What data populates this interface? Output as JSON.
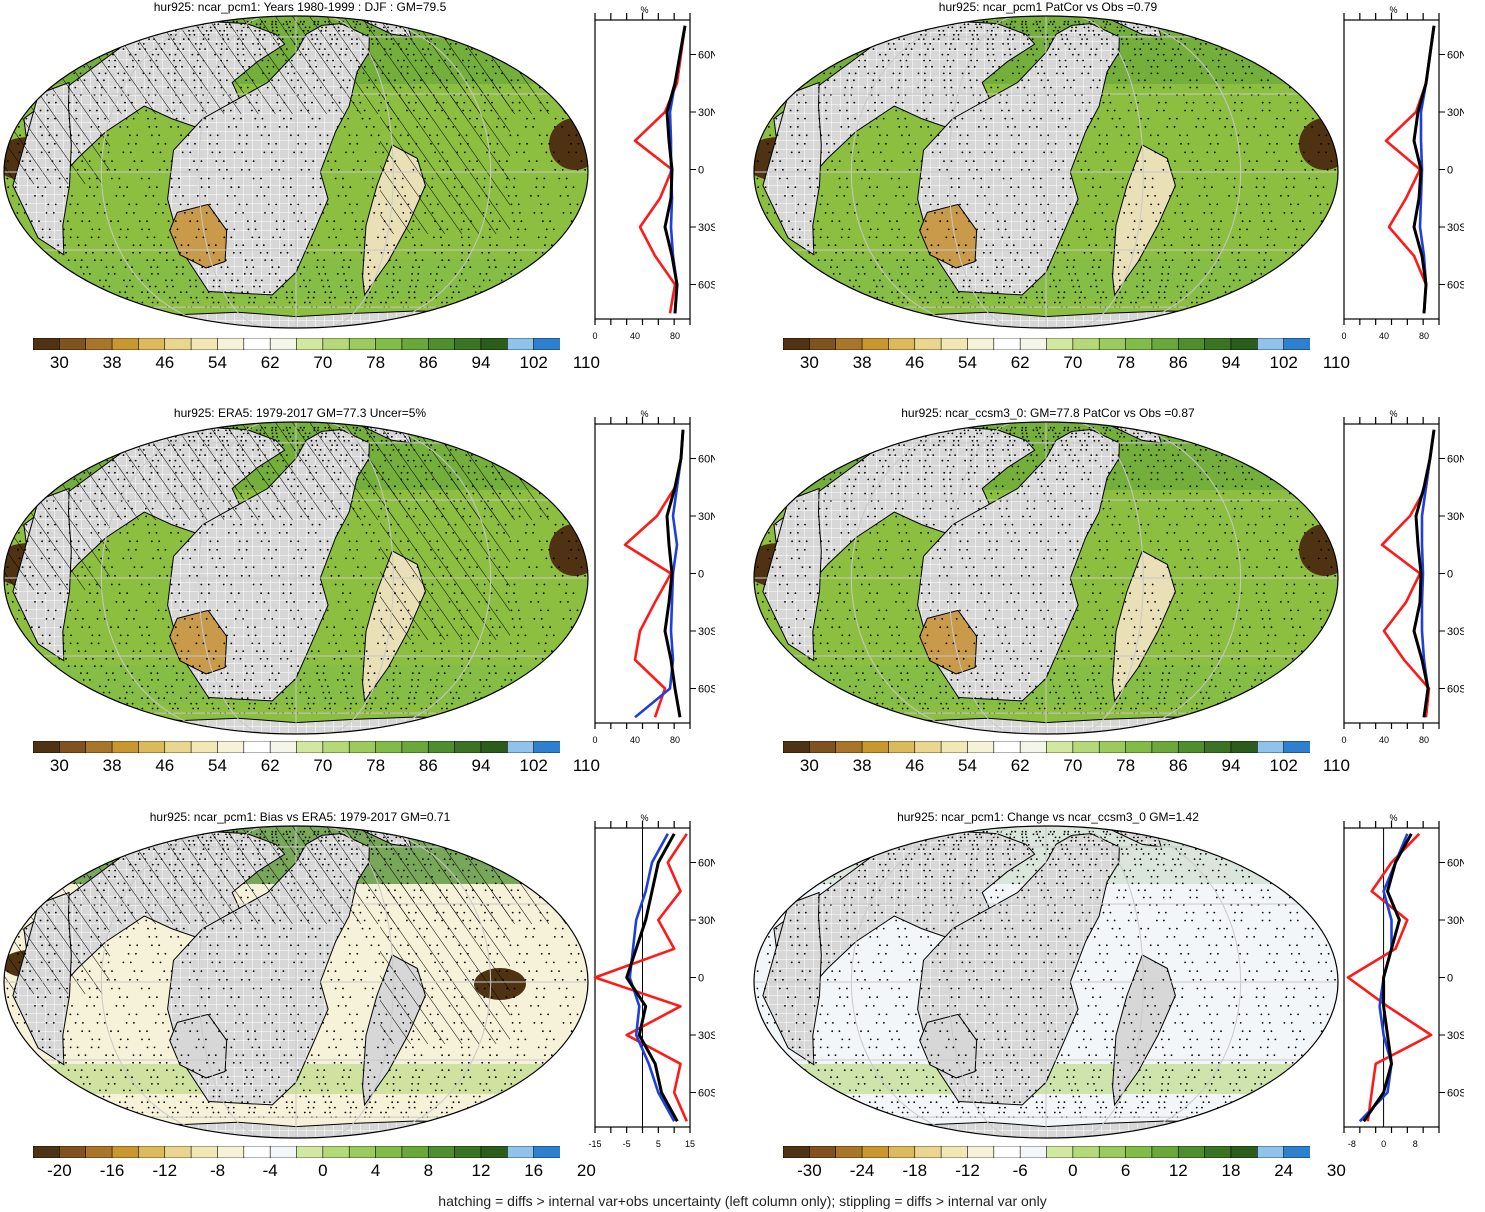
{
  "footer": "hatching = diffs > internal var+obs uncertainty (left column only); stippling = diffs > internal var only",
  "colors": {
    "ocean": "#8cbf3f",
    "land_missing": "#d7d7d7",
    "lat_line": "#c8c8c8",
    "profile_red": "#ff1a1a",
    "profile_blue": "#1f3fdc",
    "profile_black": "#000000",
    "abs_scale": [
      "#4f3212",
      "#80521e",
      "#a8752a",
      "#c9962f",
      "#dcba5c",
      "#ead68f",
      "#f2e8b5",
      "#f6f1d9",
      "#ffffff",
      "#f3f6e8",
      "#d2e8a0",
      "#b5d878",
      "#9bcb5c",
      "#82bc48",
      "#6aa83b",
      "#4f8e2d",
      "#3a7322",
      "#2a5c1a",
      "#8fc3ec",
      "#2d7fd0"
    ],
    "bias_scale": [
      "#4f3212",
      "#80521e",
      "#a8752a",
      "#c9962f",
      "#dcba5c",
      "#ead68f",
      "#f2e8b5",
      "#f6f1d9",
      "#ffffff",
      "#f3f6f8",
      "#d2e8a0",
      "#b5d878",
      "#9bcb5c",
      "#82bc48",
      "#6aa83b",
      "#4f8e2d",
      "#3a7322",
      "#2a5c1a",
      "#8fc3ec",
      "#2d7fd0"
    ]
  },
  "panels": [
    {
      "id": "p1",
      "title": "hur925: ncar_pcm1: Years 1980-1999 : DJF : GM=79.5",
      "kind": "abs",
      "hatch": true,
      "cbar_labels": [
        "30",
        "38",
        "46",
        "54",
        "62",
        "70",
        "78",
        "86",
        "94",
        "102",
        "110"
      ],
      "profile": {
        "xticks": [
          "0",
          "40",
          "80"
        ],
        "xlim": [
          0,
          95
        ],
        "unit": "%",
        "zero_line": false
      }
    },
    {
      "id": "p2",
      "title": "hur925: ncar_pcm1 PatCor vs Obs =0.79",
      "kind": "abs",
      "hatch": false,
      "cbar_labels": [
        "30",
        "38",
        "46",
        "54",
        "62",
        "70",
        "78",
        "86",
        "94",
        "102",
        "110"
      ],
      "profile": {
        "xticks": [
          "0",
          "40",
          "80"
        ],
        "xlim": [
          0,
          95
        ],
        "unit": "%",
        "zero_line": false
      }
    },
    {
      "id": "p3",
      "title": "hur925: ERA5: 1979-2017 GM=77.3 Uncer=5%",
      "kind": "abs",
      "hatch": true,
      "cbar_labels": [
        "30",
        "38",
        "46",
        "54",
        "62",
        "70",
        "78",
        "86",
        "94",
        "102",
        "110"
      ],
      "profile": {
        "xticks": [
          "0",
          "40",
          "80"
        ],
        "xlim": [
          0,
          95
        ],
        "unit": "%",
        "zero_line": false
      }
    },
    {
      "id": "p4",
      "title": "hur925: ncar_ccsm3_0: GM=77.8 PatCor vs Obs =0.87",
      "kind": "abs",
      "hatch": false,
      "cbar_labels": [
        "30",
        "38",
        "46",
        "54",
        "62",
        "70",
        "78",
        "86",
        "94",
        "102",
        "110"
      ],
      "profile": {
        "xticks": [
          "0",
          "40",
          "80"
        ],
        "xlim": [
          0,
          95
        ],
        "unit": "%",
        "zero_line": false
      }
    },
    {
      "id": "p5",
      "title": "hur925: ncar_pcm1: Bias vs ERA5: 1979-2017 GM=0.71",
      "kind": "bias",
      "hatch": true,
      "cbar_labels": [
        "-20",
        "-16",
        "-12",
        "-8",
        "-4",
        "0",
        "4",
        "8",
        "12",
        "16",
        "20"
      ],
      "profile": {
        "xticks": [
          "-15",
          "-5",
          "5",
          "15"
        ],
        "xlim": [
          -15,
          15
        ],
        "unit": "%",
        "zero_line": true
      }
    },
    {
      "id": "p6",
      "title": "hur925: ncar_pcm1: Change vs ncar_ccsm3_0 GM=1.42",
      "kind": "bias",
      "hatch": false,
      "cbar_labels": [
        "-30",
        "-24",
        "-18",
        "-12",
        "-6",
        "0",
        "6",
        "12",
        "18",
        "24",
        "30"
      ],
      "profile": {
        "xticks": [
          "-8",
          "0",
          "8"
        ],
        "xlim": [
          -10,
          14
        ],
        "unit": "%",
        "zero_line": true
      }
    }
  ],
  "lat_labels": [
    "60N",
    "30N",
    "0",
    "30S",
    "60S"
  ],
  "chart_data": [
    {
      "type": "line",
      "panel": "p1",
      "title": "hur925: ncar_pcm1: Years 1980-1999 : DJF : GM=79.5",
      "xlabel": "%",
      "y": [
        -75,
        -60,
        -45,
        -30,
        -15,
        0,
        15,
        30,
        45,
        60,
        75
      ],
      "series": [
        {
          "values": [
            75,
            80,
            60,
            45,
            65,
            77,
            40,
            70,
            82,
            86,
            90
          ]
        },
        {
          "values": [
            80,
            82,
            78,
            76,
            77,
            76,
            76,
            75,
            80,
            85,
            90
          ]
        },
        {
          "values": [
            80,
            82,
            77,
            70,
            76,
            77,
            74,
            72,
            80,
            85,
            90
          ]
        }
      ]
    },
    {
      "type": "line",
      "panel": "p2",
      "title": "hur925: ncar_pcm1 PatCor vs Obs =0.79",
      "xlabel": "%",
      "y": [
        -75,
        -60,
        -45,
        -30,
        -15,
        0,
        15,
        30,
        45,
        60,
        75
      ],
      "series": [
        {
          "values": [
            80,
            82,
            70,
            45,
            62,
            76,
            42,
            72,
            82,
            86,
            90
          ]
        },
        {
          "values": [
            80,
            82,
            80,
            76,
            77,
            78,
            77,
            77,
            82,
            86,
            90
          ]
        },
        {
          "values": [
            80,
            82,
            78,
            70,
            75,
            77,
            70,
            74,
            82,
            86,
            90
          ]
        }
      ]
    },
    {
      "type": "line",
      "panel": "p3",
      "title": "hur925: ERA5: 1979-2017 GM=77.3 Uncer=5%",
      "xlabel": "%",
      "y": [
        -75,
        -60,
        -45,
        -30,
        -15,
        0,
        15,
        30,
        45,
        60,
        75
      ],
      "series": [
        {
          "values": [
            60,
            70,
            40,
            45,
            60,
            76,
            30,
            62,
            80,
            86,
            88
          ]
        },
        {
          "values": [
            40,
            75,
            78,
            76,
            77,
            78,
            82,
            78,
            82,
            86,
            88
          ]
        },
        {
          "values": [
            85,
            80,
            76,
            70,
            74,
            77,
            74,
            72,
            80,
            86,
            88
          ]
        }
      ]
    },
    {
      "type": "line",
      "panel": "p4",
      "title": "hur925: ncar_ccsm3_0: GM=77.8 PatCor vs Obs =0.87",
      "xlabel": "%",
      "y": [
        -75,
        -60,
        -45,
        -30,
        -15,
        0,
        15,
        30,
        45,
        60,
        75
      ],
      "series": [
        {
          "values": [
            82,
            85,
            60,
            40,
            62,
            76,
            38,
            66,
            82,
            86,
            90
          ]
        },
        {
          "values": [
            80,
            84,
            80,
            78,
            78,
            79,
            78,
            78,
            82,
            86,
            90
          ]
        },
        {
          "values": [
            80,
            84,
            78,
            70,
            76,
            77,
            74,
            72,
            80,
            86,
            90
          ]
        }
      ]
    },
    {
      "type": "line",
      "panel": "p5",
      "title": "hur925: ncar_pcm1: Bias vs ERA5: 1979-2017 GM=0.71",
      "xlabel": "%",
      "y": [
        -75,
        -60,
        -45,
        -30,
        -15,
        0,
        15,
        30,
        45,
        60,
        75
      ],
      "series": [
        {
          "values": [
            14,
            10,
            12,
            -5,
            12,
            -15,
            10,
            5,
            12,
            8,
            14
          ]
        },
        {
          "values": [
            10,
            5,
            2,
            -2,
            -1,
            -4,
            -3,
            -2,
            1,
            3,
            8
          ]
        },
        {
          "values": [
            11,
            6,
            4,
            -1,
            1,
            -5,
            -2,
            1,
            3,
            5,
            10
          ]
        }
      ]
    },
    {
      "type": "line",
      "panel": "p6",
      "title": "hur925: ncar_pcm1: Change vs ncar_ccsm3_0 GM=1.42",
      "xlabel": "%",
      "y": [
        -75,
        -60,
        -45,
        -30,
        -15,
        0,
        15,
        30,
        45,
        60,
        75
      ],
      "series": [
        {
          "values": [
            -4,
            -3,
            -2,
            12,
            1,
            -9,
            3,
            6,
            -3,
            2,
            9
          ]
        },
        {
          "values": [
            -6,
            1,
            2,
            0,
            -1,
            0,
            2,
            2,
            0,
            3,
            6
          ]
        },
        {
          "values": [
            -5,
            0,
            2,
            1,
            0,
            0,
            2,
            4,
            1,
            3,
            7
          ]
        }
      ]
    }
  ]
}
